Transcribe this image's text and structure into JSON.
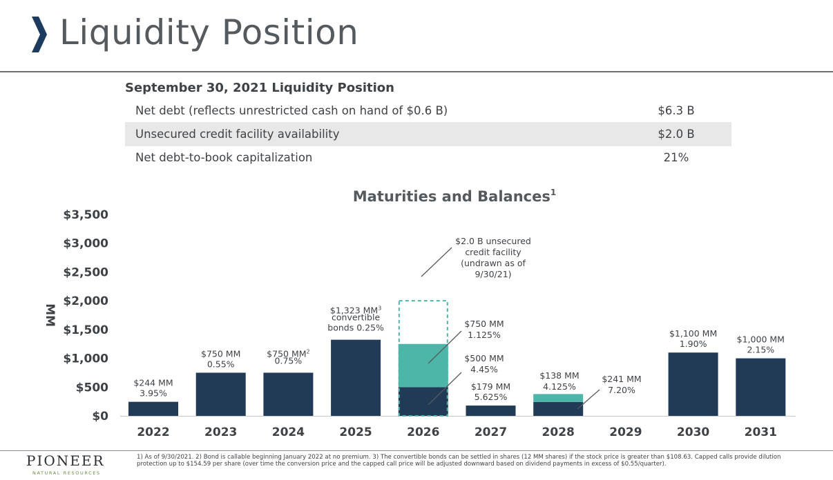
{
  "page_title": "Liquidity Position",
  "liquidity": {
    "heading": "September 30, 2021 Liquidity Position",
    "rows": [
      {
        "label": "Net debt (reflects unrestricted cash on hand of $0.6 B)",
        "value": "$6.3 B"
      },
      {
        "label": "Unsecured credit facility availability",
        "value": "$2.0 B"
      },
      {
        "label": "Net debt-to-book capitalization",
        "value": "21%"
      }
    ]
  },
  "chart_data": {
    "type": "bar",
    "title": "Maturities and Balances",
    "title_superscript": "1",
    "ylabel": "MM",
    "ylim": [
      0,
      3500
    ],
    "y_ticks": [
      0,
      500,
      1000,
      1500,
      2000,
      2500,
      3000,
      3500
    ],
    "y_tick_labels": [
      "$0",
      "$500",
      "$1,000",
      "$1,500",
      "$2,000",
      "$2,500",
      "$3,000",
      "$3,500"
    ],
    "categories": [
      "2022",
      "2023",
      "2024",
      "2025",
      "2026",
      "2027",
      "2028",
      "2029",
      "2030",
      "2031"
    ],
    "series": [
      {
        "values": [
          244,
          750,
          750,
          1323,
          500,
          179,
          241,
          0,
          1100,
          1000
        ],
        "color": "#213a56"
      },
      {
        "values": [
          0,
          0,
          0,
          0,
          750,
          0,
          138,
          0,
          0,
          0
        ],
        "color": "#4db6a8"
      },
      {
        "values": [
          0,
          0,
          0,
          0,
          2000,
          0,
          0,
          0,
          0,
          0
        ],
        "style": "dashed-outline",
        "color": "#4db6a8"
      }
    ],
    "bar_labels": [
      {
        "category": "2022",
        "lines": [
          "$244 MM",
          "3.95%"
        ]
      },
      {
        "category": "2023",
        "lines": [
          "$750 MM",
          "0.55%"
        ]
      },
      {
        "category": "2024",
        "lines": [
          "$750 MM",
          "0.75%"
        ],
        "superscript": "2"
      },
      {
        "category": "2025",
        "lines": [
          "$1,323 MM",
          "convertible",
          "bonds 0.25%"
        ],
        "superscript": "3"
      },
      {
        "category": "2027",
        "lines": [
          "$179 MM",
          "5.625%"
        ]
      },
      {
        "category": "2030",
        "lines": [
          "$1,100 MM",
          "1.90%"
        ]
      },
      {
        "category": "2031",
        "lines": [
          "$1,000 MM",
          "2.15%"
        ]
      }
    ],
    "callouts": [
      {
        "category": "2026",
        "lines": [
          "$2.0 B unsecured",
          "credit facility",
          "(undrawn as of",
          "9/30/21)"
        ]
      },
      {
        "category": "2026",
        "lines": [
          "$750 MM",
          "1.125%"
        ]
      },
      {
        "category": "2026",
        "lines": [
          "$500 MM",
          "4.45%"
        ]
      },
      {
        "category": "2028",
        "lines": [
          "$138 MM",
          "4.125%"
        ]
      },
      {
        "category": "2028",
        "lines": [
          "$241 MM",
          "7.20%"
        ]
      }
    ]
  },
  "brand": {
    "name": "PIONEER",
    "tagline": "NATURAL RESOURCES",
    "accent": "#1c3b5e"
  },
  "footnote": "1) As of 9/30/2021. 2) Bond is callable beginning January 2022 at no premium. 3) The convertible bonds can be settled in shares (12 MM shares) if the stock price is greater than $108.63. Capped calls provide dilution protection up to $154.59 per share (over time the conversion price and the capped call price will be adjusted downward based on dividend payments in excess of $0.55/quarter)."
}
